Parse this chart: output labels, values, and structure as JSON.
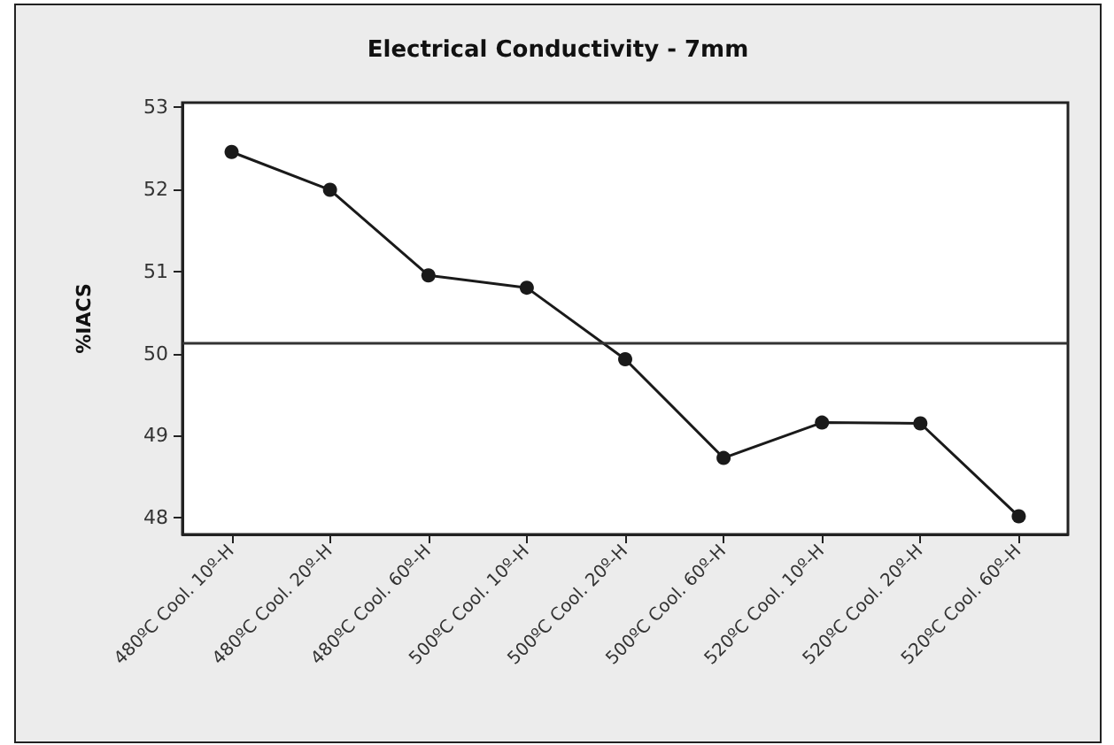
{
  "chart_data": {
    "type": "line",
    "title": "Electrical Conductivity - 7mm",
    "ylabel": "%IACS",
    "categories": [
      "480ºC Cool. 10º-H",
      "480ºC Cool. 20º-H",
      "480ºC Cool. 60º-H",
      "500ºC Cool. 10º-H",
      "500ºC Cool. 20º-H",
      "500ºC Cool. 60º-H",
      "520ºC Cool. 10º-H",
      "520ºC Cool. 20º-H",
      "520ºC Cool. 60º-H"
    ],
    "series": [
      {
        "color": "#1a1a1a",
        "values": [
          52.45,
          51.99,
          50.95,
          50.8,
          49.93,
          48.73,
          49.16,
          49.15,
          48.02
        ]
      }
    ],
    "ylim": [
      47.8,
      53.05
    ],
    "yticks": [
      48,
      49,
      50,
      51,
      52,
      53
    ],
    "grid": false,
    "marker": "circle",
    "line_style": "solid",
    "ref_lines": [
      {
        "axis": "y",
        "value": 50.12,
        "color": "#333333"
      }
    ]
  }
}
